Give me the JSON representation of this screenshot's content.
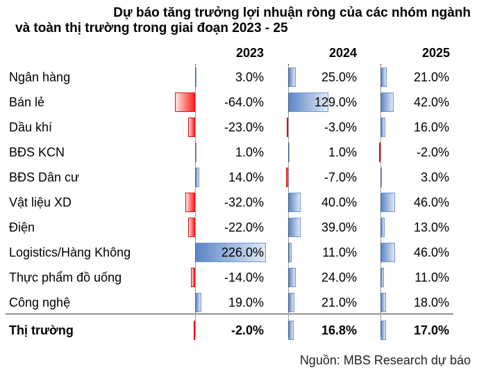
{
  "title": {
    "line1": "Dự báo tăng trưởng lợi nhuận ròng của các nhóm ngành",
    "line2": "và toàn thị trường trong giai đoạn 2023 - 25"
  },
  "source": "Nguồn: MBS Research dự báo",
  "colors": {
    "positive": "#5b86c6",
    "negative": "#ff1f1f"
  },
  "chart_data": {
    "type": "table",
    "title": "Dự báo tăng trưởng lợi nhuận ròng của các nhóm ngành và toàn thị trường trong giai đoạn 2023 - 25",
    "columns": [
      "2023",
      "2024",
      "2025"
    ],
    "categories": [
      "Ngân hàng",
      "Bán lẻ",
      "Dầu khí",
      "BĐS KCN",
      "BĐS Dân cư",
      "Vật liệu XD",
      "Điện",
      "Logistics/Hàng Không",
      "Thực phẩm đồ uống",
      "Công nghệ",
      "Thị trường"
    ],
    "series": [
      {
        "name": "2023",
        "values": [
          3.0,
          -64.0,
          -23.0,
          1.0,
          14.0,
          -32.0,
          -22.0,
          226.0,
          -14.0,
          19.0,
          -2.0
        ]
      },
      {
        "name": "2024",
        "values": [
          25.0,
          129.0,
          -3.0,
          1.0,
          -7.0,
          40.0,
          39.0,
          11.0,
          24.0,
          21.0,
          16.8
        ]
      },
      {
        "name": "2025",
        "values": [
          21.0,
          42.0,
          16.0,
          -2.0,
          3.0,
          46.0,
          13.0,
          46.0,
          11.0,
          18.0,
          17.0
        ]
      }
    ],
    "unit": "%",
    "bars_in_cells": true
  },
  "headers": [
    "2023",
    "2024",
    "2025"
  ],
  "rows": [
    {
      "label": "Ngân hàng",
      "v": [
        "3.0%",
        "25.0%",
        "21.0%"
      ],
      "n": [
        3,
        25,
        21
      ]
    },
    {
      "label": "Bán lẻ",
      "v": [
        "-64.0%",
        "129.0%",
        "42.0%"
      ],
      "n": [
        -64,
        129,
        42
      ]
    },
    {
      "label": "Dầu khí",
      "v": [
        "-23.0%",
        "-3.0%",
        "16.0%"
      ],
      "n": [
        -23,
        -3,
        16
      ]
    },
    {
      "label": "BĐS KCN",
      "v": [
        "1.0%",
        "1.0%",
        "-2.0%"
      ],
      "n": [
        1,
        1,
        -2
      ]
    },
    {
      "label": "BĐS Dân cư",
      "v": [
        "14.0%",
        "-7.0%",
        "3.0%"
      ],
      "n": [
        14,
        -7,
        3
      ]
    },
    {
      "label": "Vật liệu XD",
      "v": [
        "-32.0%",
        "40.0%",
        "46.0%"
      ],
      "n": [
        -32,
        40,
        46
      ]
    },
    {
      "label": "Điện",
      "v": [
        "-22.0%",
        "39.0%",
        "13.0%"
      ],
      "n": [
        -22,
        39,
        13
      ]
    },
    {
      "label": "Logistics/Hàng Không",
      "v": [
        "226.0%",
        "11.0%",
        "46.0%"
      ],
      "n": [
        226,
        11,
        46
      ]
    },
    {
      "label": "Thực phẩm đồ uống",
      "v": [
        "-14.0%",
        "24.0%",
        "11.0%"
      ],
      "n": [
        -14,
        24,
        11
      ]
    },
    {
      "label": "Công nghệ",
      "v": [
        "19.0%",
        "21.0%",
        "18.0%"
      ],
      "n": [
        19,
        21,
        18
      ]
    },
    {
      "label": "Thị trường",
      "v": [
        "-2.0%",
        "16.8%",
        "17.0%"
      ],
      "n": [
        -2,
        16.8,
        17
      ],
      "total": true
    }
  ]
}
